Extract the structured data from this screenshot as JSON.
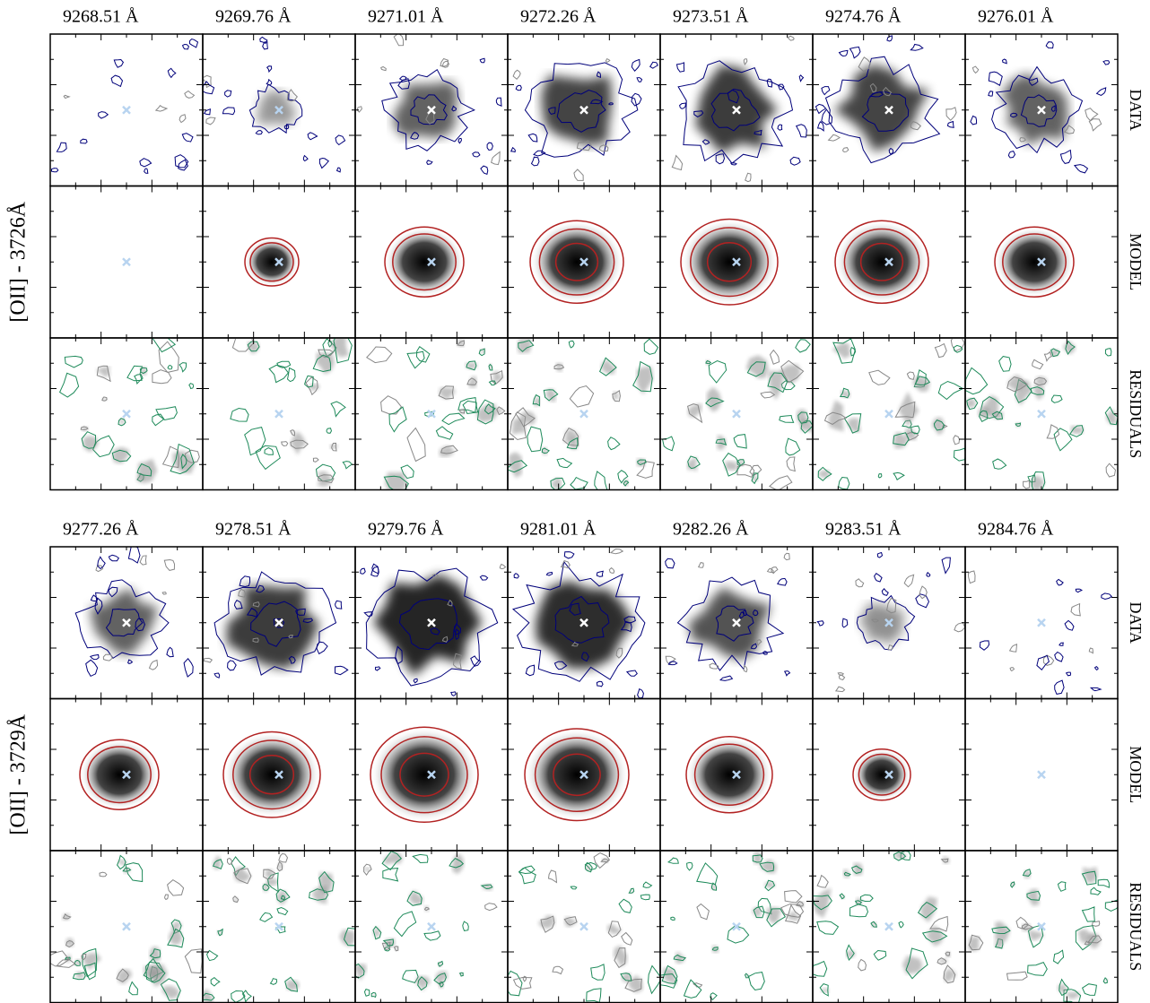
{
  "groups": [
    {
      "label": "[OII] - 3726Å",
      "wavelengths": [
        "9268.51 Å",
        "9269.76 Å",
        "9271.01 Å",
        "9272.26 Å",
        "9273.51 Å",
        "9274.76 Å",
        "9276.01 Å"
      ],
      "rows": [
        "DATA",
        "MODEL",
        "RESIDUALS"
      ]
    },
    {
      "label": "[OII] - 3729Å",
      "wavelengths": [
        "9277.26 Å",
        "9278.51 Å",
        "9279.76 Å",
        "9281.01 Å",
        "9282.26 Å",
        "9283.51 Å",
        "9284.76 Å"
      ],
      "rows": [
        "DATA",
        "MODEL",
        "RESIDUALS"
      ]
    }
  ]
}
